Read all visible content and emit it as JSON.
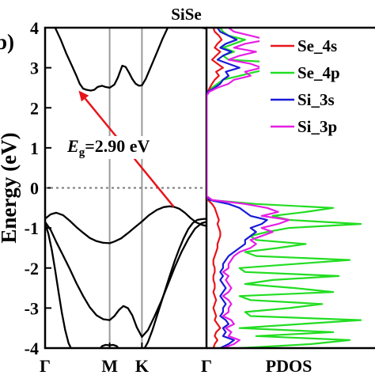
{
  "chart_data": [
    {
      "type": "line",
      "panel": "band-structure",
      "title": "SiSe",
      "ylabel": "Energy (eV)",
      "ylim": [
        -4,
        4
      ],
      "yticks": [
        -4,
        -3,
        -2,
        -1,
        0,
        1,
        2,
        3,
        4
      ],
      "ytick_labels": [
        "-4",
        "-3",
        "-2",
        "-1",
        "0",
        "1",
        "2",
        "3",
        "4"
      ],
      "kpath": [
        "Γ",
        "M",
        "K",
        "Γ"
      ],
      "kpath_positions": [
        0,
        0.5774,
        0.866,
        1.4434
      ],
      "fermi_level": 0,
      "annotation": {
        "label_italic": "E",
        "label_sub": "g",
        "label_rest": "=2.90 eV",
        "gap": 2.9,
        "vbm": [
          1.15,
          -0.47
        ],
        "cbm": [
          0.3,
          2.43
        ]
      },
      "series": [
        {
          "x": [
            0,
            0.04,
            0.09,
            0.14,
            0.19,
            0.24,
            0.28,
            0.31,
            0.34,
            0.37,
            0.41,
            0.44,
            0.47,
            0.51,
            0.54,
            0.5774,
            0.62,
            0.65,
            0.67,
            0.69,
            0.72,
            0.75,
            0.78,
            0.81,
            0.84,
            0.866,
            0.9,
            0.95,
            1.0,
            1.05,
            1.1,
            1.15,
            1.2,
            1.25,
            1.3,
            1.35,
            1.4,
            1.4434
          ],
          "y": [
            3.98,
            4.15,
            4.0,
            3.7,
            3.35,
            3.05,
            2.8,
            2.6,
            2.48,
            2.45,
            2.43,
            2.45,
            2.52,
            2.55,
            2.52,
            2.5,
            2.58,
            2.75,
            2.9,
            3.05,
            3.02,
            2.88,
            2.72,
            2.6,
            2.55,
            2.56,
            2.72,
            3.05,
            3.38,
            3.72,
            4.02,
            4.3,
            4.4,
            4.35,
            4.2,
            4.08,
            4.0,
            3.98
          ]
        },
        {
          "x": [
            0,
            0.05,
            0.1,
            0.16,
            0.22,
            0.28,
            0.34,
            0.4,
            0.46,
            0.52,
            0.5774,
            0.62,
            0.68,
            0.74,
            0.8,
            0.866,
            0.93,
            1.0,
            1.06,
            1.11,
            1.15,
            1.2,
            1.25,
            1.3,
            1.35,
            1.4,
            1.4434
          ],
          "y": [
            -0.77,
            -0.66,
            -0.62,
            -0.68,
            -0.82,
            -0.98,
            -1.12,
            -1.25,
            -1.33,
            -1.37,
            -1.38,
            -1.34,
            -1.26,
            -1.13,
            -0.99,
            -0.84,
            -0.68,
            -0.55,
            -0.48,
            -0.46,
            -0.47,
            -0.52,
            -0.62,
            -0.75,
            -0.86,
            -0.92,
            -0.95
          ]
        },
        {
          "x": [
            0,
            0.05,
            0.1,
            0.16,
            0.22,
            0.28,
            0.34,
            0.4,
            0.46,
            0.52,
            0.5774,
            0.62,
            0.66,
            0.7,
            0.74,
            0.78,
            0.82,
            0.866,
            0.92,
            0.98,
            1.04,
            1.1,
            1.16,
            1.22,
            1.28,
            1.34,
            1.4,
            1.4434
          ],
          "y": [
            -0.85,
            -1.05,
            -1.35,
            -1.68,
            -2.02,
            -2.38,
            -2.7,
            -2.98,
            -3.18,
            -3.28,
            -3.3,
            -3.2,
            -3.05,
            -2.95,
            -3.0,
            -3.18,
            -3.48,
            -3.72,
            -3.55,
            -3.2,
            -2.82,
            -2.4,
            -1.98,
            -1.6,
            -1.28,
            -1.02,
            -0.88,
            -0.85
          ]
        },
        {
          "x": [
            0,
            0.03,
            0.06,
            0.09,
            0.12,
            0.15,
            0.18,
            0.21,
            0.24
          ],
          "y": [
            -0.88,
            -1.15,
            -1.55,
            -2.05,
            -2.6,
            -3.12,
            -3.55,
            -3.88,
            -4.05
          ]
        },
        {
          "x": [
            0.48,
            0.51,
            0.54,
            0.5774,
            0.61,
            0.64,
            0.67
          ],
          "y": [
            -4.05,
            -3.95,
            -3.92,
            -3.93,
            -3.92,
            -3.95,
            -4.05
          ]
        },
        {
          "x": [
            0.88,
            0.92,
            0.96,
            1.0,
            1.04,
            1.08,
            1.12,
            1.16,
            1.2,
            1.24,
            1.28,
            1.32,
            1.36,
            1.4,
            1.4434
          ],
          "y": [
            -4.05,
            -3.85,
            -3.55,
            -3.2,
            -2.85,
            -2.5,
            -2.15,
            -1.82,
            -1.52,
            -1.25,
            -1.03,
            -0.88,
            -0.8,
            -0.78,
            -0.77
          ]
        }
      ]
    },
    {
      "type": "line",
      "panel": "pdos",
      "xlabel": "PDOS",
      "ylim": [
        -4,
        4
      ],
      "legend_position": "top-right",
      "energy": [
        -4.0,
        -3.9,
        -3.8,
        -3.7,
        -3.6,
        -3.5,
        -3.4,
        -3.3,
        -3.2,
        -3.1,
        -3.0,
        -2.9,
        -2.8,
        -2.7,
        -2.6,
        -2.5,
        -2.4,
        -2.3,
        -2.2,
        -2.1,
        -2.0,
        -1.9,
        -1.8,
        -1.7,
        -1.6,
        -1.5,
        -1.4,
        -1.3,
        -1.2,
        -1.1,
        -1.0,
        -0.9,
        -0.8,
        -0.7,
        -0.6,
        -0.5,
        -0.4,
        -0.3,
        2.4,
        2.5,
        2.6,
        2.7,
        2.8,
        2.9,
        3.0,
        3.1,
        3.2,
        3.3,
        3.4,
        3.5,
        3.6,
        3.7,
        3.8,
        3.9,
        4.0
      ],
      "series": [
        {
          "name": "Se_4s",
          "color": "#e8141b",
          "values": [
            0.25,
            0.3,
            0.4,
            0.3,
            0.35,
            0.5,
            0.4,
            0.3,
            0.35,
            0.3,
            0.25,
            0.3,
            0.35,
            0.3,
            0.25,
            0.3,
            0.3,
            0.25,
            0.25,
            0.3,
            0.3,
            0.25,
            0.25,
            0.3,
            0.35,
            0.4,
            0.4,
            0.45,
            0.5,
            0.5,
            0.45,
            0.4,
            0.45,
            0.4,
            0.35,
            0.3,
            0.2,
            0.05,
            0.05,
            0.12,
            0.2,
            0.3,
            0.45,
            0.35,
            0.6,
            0.4,
            0.2,
            0.35,
            0.5,
            0.3,
            0.4,
            0.55,
            0.45,
            0.3,
            0.25
          ]
        },
        {
          "name": "Se_4p",
          "color": "#22dd22",
          "values": [
            1.2,
            3.8,
            5.2,
            1.8,
            4.6,
            1.2,
            3.4,
            5.6,
            1.6,
            1.4,
            3.0,
            4.2,
            1.6,
            1.2,
            4.6,
            3.2,
            1.4,
            2.4,
            4.8,
            1.4,
            1.2,
            3.2,
            5.2,
            1.8,
            1.4,
            2.6,
            3.6,
            1.8,
            1.6,
            2.2,
            3.0,
            5.6,
            3.0,
            2.4,
            3.6,
            4.6,
            1.8,
            0.1,
            0.05,
            0.2,
            0.4,
            0.6,
            1.2,
            1.8,
            2.6,
            3.4,
            0.8,
            0.6,
            1.0,
            0.6,
            1.0,
            1.4,
            0.8,
            0.6,
            0.5
          ]
        },
        {
          "name": "Si_3s",
          "color": "#1a1ad8",
          "values": [
            0.5,
            0.8,
            1.0,
            0.6,
            0.7,
            0.6,
            0.8,
            0.7,
            0.5,
            0.6,
            0.6,
            0.7,
            0.6,
            0.5,
            0.6,
            0.7,
            0.6,
            0.5,
            0.6,
            0.5,
            0.6,
            0.6,
            0.7,
            0.8,
            1.0,
            1.2,
            1.4,
            1.4,
            1.6,
            1.8,
            1.6,
            2.0,
            2.2,
            1.6,
            1.4,
            1.2,
            0.8,
            0.1,
            0.05,
            0.3,
            0.5,
            0.6,
            0.8,
            0.7,
            1.2,
            0.8,
            0.4,
            0.6,
            0.9,
            0.5,
            0.7,
            1.1,
            0.8,
            0.5,
            0.4
          ]
        },
        {
          "name": "Si_3p",
          "color": "#e61ee6",
          "values": [
            0.6,
            1.0,
            1.2,
            0.8,
            0.9,
            0.7,
            1.0,
            0.9,
            0.6,
            0.8,
            0.8,
            0.9,
            0.8,
            0.6,
            0.8,
            0.9,
            0.8,
            0.7,
            0.8,
            0.6,
            0.8,
            0.8,
            0.9,
            1.0,
            1.2,
            1.6,
            1.8,
            1.6,
            2.0,
            2.4,
            2.0,
            2.6,
            3.0,
            2.0,
            2.6,
            2.2,
            1.4,
            0.2,
            0.1,
            0.4,
            0.8,
            1.0,
            1.6,
            1.4,
            2.0,
            1.6,
            0.8,
            1.2,
            1.8,
            1.0,
            1.4,
            2.2,
            1.6,
            1.0,
            0.8
          ]
        }
      ]
    }
  ]
}
